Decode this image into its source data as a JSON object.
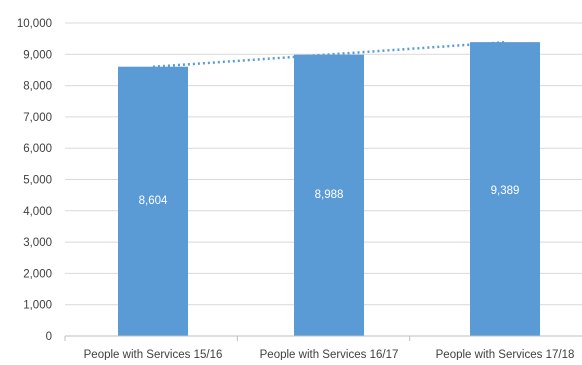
{
  "chart_data": {
    "type": "bar",
    "title": "",
    "xlabel": "",
    "ylabel": "",
    "categories": [
      "People with Services 15/16",
      "People with Services 16/17",
      "People with Services 17/18"
    ],
    "values": [
      8604,
      8988,
      9389
    ],
    "data_labels": [
      "8,604",
      "8,988",
      "9,389"
    ],
    "ylim": [
      0,
      10000
    ],
    "yticks": [
      0,
      1000,
      2000,
      3000,
      4000,
      5000,
      6000,
      7000,
      8000,
      9000,
      10000
    ],
    "ytick_labels": [
      "0",
      "1,000",
      "2,000",
      "3,000",
      "4,000",
      "5,000",
      "6,000",
      "7,000",
      "8,000",
      "9,000",
      "10,000"
    ],
    "grid": true,
    "trendline": "linear dotted",
    "colors": {
      "bar": "#5b9bd5",
      "trend": "#5b9bd5",
      "grid": "#d9d9d9",
      "axis": "#bfbfbf"
    }
  }
}
